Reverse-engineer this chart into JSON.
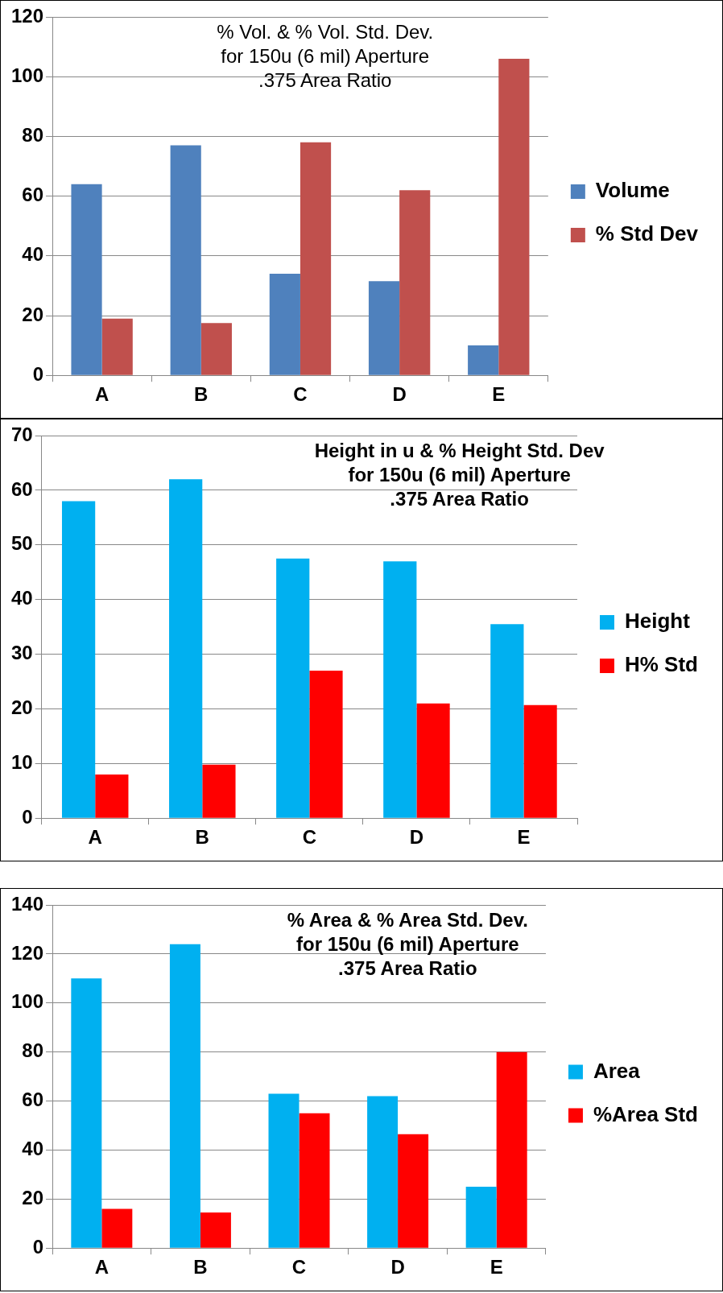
{
  "chart_data": [
    {
      "type": "bar",
      "title": "% Vol. & % Vol. Std. Dev.\nfor 150u (6 mil) Aperture\n.375 Area Ratio",
      "categories": [
        "A",
        "B",
        "C",
        "D",
        "E"
      ],
      "series": [
        {
          "name": "Volume",
          "color": "#4f81bd",
          "values": [
            64,
            77,
            34,
            31.5,
            10
          ]
        },
        {
          "name": "% Std Dev",
          "color": "#c0504d",
          "values": [
            19,
            17.5,
            78,
            62,
            106
          ]
        }
      ],
      "ylim": [
        0,
        120
      ],
      "yticks": [
        0,
        20,
        40,
        60,
        80,
        100,
        120
      ],
      "grid": "y",
      "legend": "right"
    },
    {
      "type": "bar",
      "title": "Height in u & % Height Std. Dev\nfor 150u (6 mil) Aperture\n.375 Area Ratio",
      "categories": [
        "A",
        "B",
        "C",
        "D",
        "E"
      ],
      "series": [
        {
          "name": "Height",
          "color": "#00b0f0",
          "values": [
            58,
            62,
            47.5,
            47,
            35.5
          ]
        },
        {
          "name": "H% Std",
          "color": "#ff0000",
          "values": [
            8,
            9.8,
            27,
            21,
            20.7
          ]
        }
      ],
      "ylim": [
        0,
        70
      ],
      "yticks": [
        0,
        10,
        20,
        30,
        40,
        50,
        60,
        70
      ],
      "grid": "y",
      "legend": "right"
    },
    {
      "type": "bar",
      "title": "% Area & % Area Std. Dev.\nfor 150u (6 mil) Aperture\n.375 Area Ratio",
      "categories": [
        "A",
        "B",
        "C",
        "D",
        "E"
      ],
      "series": [
        {
          "name": "Area",
          "color": "#00b0f0",
          "values": [
            110,
            124,
            63,
            62,
            25
          ]
        },
        {
          "name": "%Area Std",
          "color": "#ff0000",
          "values": [
            16,
            14.5,
            55,
            46.5,
            80
          ]
        }
      ],
      "ylim": [
        0,
        140
      ],
      "yticks": [
        0,
        20,
        40,
        60,
        80,
        100,
        120,
        140
      ],
      "grid": "y",
      "legend": "right"
    }
  ]
}
